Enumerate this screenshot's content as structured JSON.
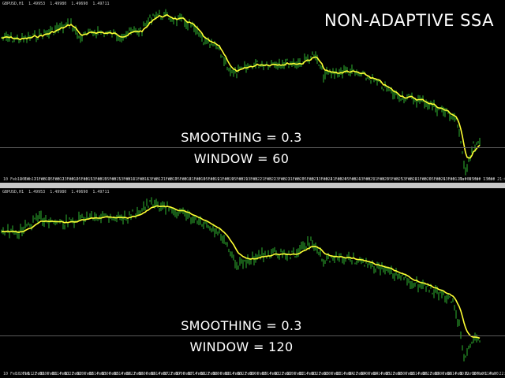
{
  "title": "NON-ADAPTIVE SSA",
  "colors": {
    "bars": "#2fb52f",
    "line": "#ffff33",
    "background": "#000000",
    "grid": "#5a5a5a"
  },
  "panels": [
    {
      "header": {
        "symbol": "GBPUSD,H1",
        "values": [
          "1.49953",
          "1.49980",
          "1.49690",
          "1.49711"
        ]
      },
      "annotation": {
        "smoothing": "SMOOTHING = 0.3",
        "window": "WINDOW = 60"
      },
      "time_labels": [
        "10 Feb 2010",
        "10 Feb 21:00",
        "11 Feb 05:00",
        "11 Feb 13:00",
        "12 Feb 05:00",
        "12 Feb 13:00",
        "15 Feb 05:00",
        "15 Feb 13:00",
        "15 Feb 21:00",
        "16 Feb 13:00",
        "16 Feb 21:00",
        "17 Feb 05:00",
        "17 Feb 21:00",
        "18 Feb 05:00",
        "18 Feb 21:00",
        "19 Feb 05:00",
        "19 Feb 13:00",
        "19 Feb 21:00",
        "22 Feb 13:00",
        "22 Feb 21:00",
        "23 Feb 05:00",
        "23 Feb 13:00",
        "23 Feb 21:00",
        "24 Feb 05:00",
        "24 Feb 13:00",
        "24 Feb 21:00",
        "25 Feb 05:00",
        "25 Feb 13:00",
        "25 Feb 21:00",
        "26 Feb 05:00",
        "26 Feb 13:00",
        "26 Feb 21:00",
        "1 Mar 05:00",
        "1 Mar 13:00",
        "1 Mar 21:00"
      ]
    },
    {
      "header": {
        "symbol": "GBPUSD,H1",
        "values": [
          "1.49953",
          "1.49980",
          "1.49690",
          "1.49711"
        ]
      },
      "annotation": {
        "smoothing": "SMOOTHING = 0.3",
        "window": "WINDOW = 120"
      },
      "time_labels": [
        "10 Feb 2010",
        "10 Feb 22:00",
        "11 Feb 06:00",
        "11 Feb 14:00",
        "11 Feb 22:00",
        "12 Feb 06:00",
        "12 Feb 14:00",
        "15 Feb 06:00",
        "15 Feb 14:00",
        "15 Feb 22:00",
        "16 Feb 06:00",
        "16 Feb 14:00",
        "16 Feb 22:00",
        "17 Feb 06:00",
        "17 Feb 14:00",
        "17 Feb 22:00",
        "18 Feb 06:00",
        "18 Feb 14:00",
        "18 Feb 22:00",
        "19 Feb 06:00",
        "19 Feb 14:00",
        "19 Feb 22:00",
        "22 Feb 06:00",
        "22 Feb 14:00",
        "22 Feb 22:00",
        "23 Feb 06:00",
        "23 Feb 14:00",
        "23 Feb 22:00",
        "24 Feb 06:00",
        "24 Feb 14:00",
        "24 Feb 22:00",
        "25 Feb 06:00",
        "25 Feb 14:00",
        "25 Feb 22:00",
        "26 Feb 06:00",
        "26 Feb 14:00",
        "26 Feb 22:00",
        "1 Mar 06:00",
        "1 Mar 14:00",
        "1 Mar 22:00"
      ]
    }
  ]
}
